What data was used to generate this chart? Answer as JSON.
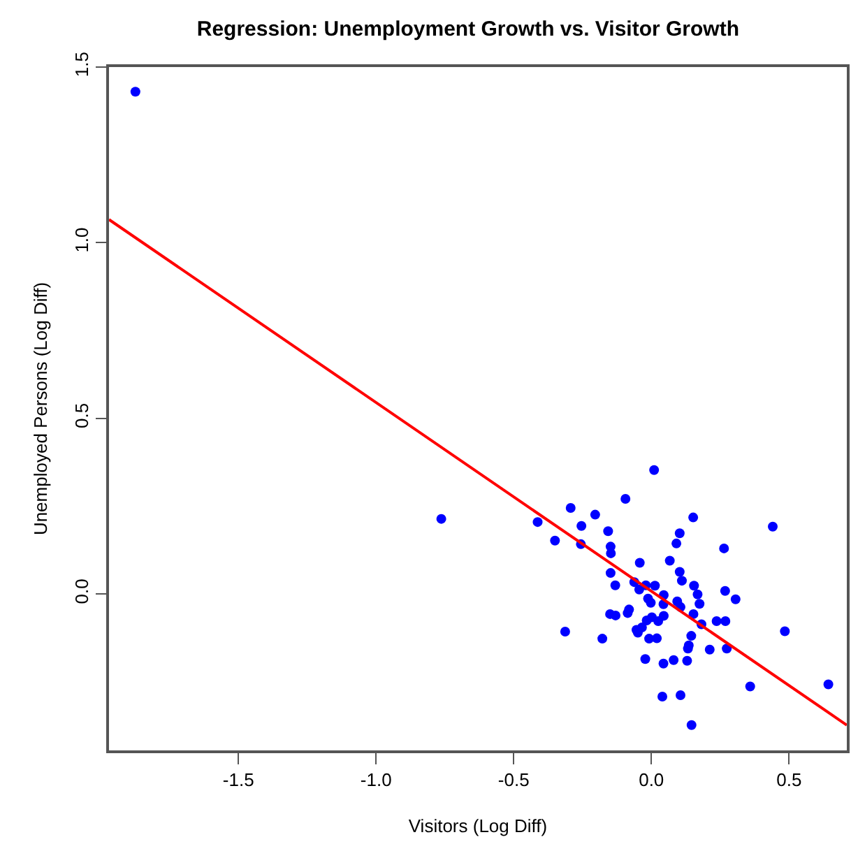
{
  "chart_data": {
    "type": "scatter",
    "title": "Regression: Unemployment Growth vs. Visitor Growth",
    "xlabel": "Visitors (Log Diff)",
    "ylabel": "Unemployed Persons (Log Diff)",
    "xlim": [
      -1.97,
      0.71
    ],
    "ylim": [
      -0.445,
      1.5
    ],
    "xticks": [
      {
        "value": -1.5,
        "label": "-1.5"
      },
      {
        "value": -1.0,
        "label": "-1.0"
      },
      {
        "value": -0.5,
        "label": "-0.5"
      },
      {
        "value": 0,
        "label": "0.0"
      },
      {
        "value": 0.5,
        "label": "0.5"
      }
    ],
    "yticks": [
      {
        "value": 0,
        "label": "0.0"
      },
      {
        "value": 0.5,
        "label": "0.5"
      },
      {
        "value": 1.0,
        "label": "1.0"
      },
      {
        "value": 1.5,
        "label": "1.5"
      }
    ],
    "series": [
      {
        "marker": "circle",
        "color": "#0000ff",
        "x": [
          -1.874,
          -0.763,
          0.01,
          -0.094,
          -0.293,
          -0.204,
          -0.413,
          -0.254,
          0.152,
          0.441,
          -0.157,
          0.103,
          -0.35,
          0.091,
          -0.256,
          -0.148,
          -0.147,
          0.264,
          -0.042,
          0.067,
          0.103,
          -0.148,
          0.111,
          -0.131,
          -0.062,
          -0.02,
          0.013,
          -0.044,
          0.155,
          0.268,
          0.168,
          0.175,
          0.306,
          0.045,
          -0.012,
          -0.002,
          0.044,
          0.094,
          0.106,
          -0.15,
          -0.13,
          -0.086,
          -0.081,
          0.045,
          0.002,
          0.153,
          -0.017,
          0.025,
          -0.034,
          -0.054,
          -0.049,
          0.182,
          0.237,
          0.269,
          -0.313,
          -0.178,
          -0.008,
          0.02,
          0.145,
          0.136,
          0.133,
          0.212,
          0.274,
          0.485,
          -0.022,
          0.044,
          0.081,
          0.13,
          0.359,
          0.643,
          0.04,
          0.106,
          0.146
        ],
        "values": [
          1.43,
          0.214,
          0.353,
          0.271,
          0.245,
          0.226,
          0.205,
          0.194,
          0.218,
          0.192,
          0.179,
          0.173,
          0.152,
          0.144,
          0.142,
          0.135,
          0.116,
          0.13,
          0.089,
          0.095,
          0.063,
          0.06,
          0.038,
          0.025,
          0.034,
          0.025,
          0.024,
          0.013,
          0.024,
          0.009,
          -0.001,
          -0.028,
          -0.015,
          -0.003,
          -0.013,
          -0.025,
          -0.029,
          -0.021,
          -0.037,
          -0.057,
          -0.061,
          -0.054,
          -0.044,
          -0.062,
          -0.066,
          -0.057,
          -0.075,
          -0.077,
          -0.095,
          -0.102,
          -0.11,
          -0.086,
          -0.077,
          -0.077,
          -0.107,
          -0.127,
          -0.127,
          -0.126,
          -0.119,
          -0.146,
          -0.155,
          -0.158,
          -0.155,
          -0.106,
          -0.185,
          -0.198,
          -0.188,
          -0.19,
          -0.263,
          -0.257,
          -0.292,
          -0.288,
          -0.373
        ]
      },
      {
        "type": "line",
        "marker": "none",
        "color": "#ff0000",
        "x": [
          -1.97,
          0.71
        ],
        "values": [
          1.066,
          -0.373
        ]
      }
    ]
  }
}
